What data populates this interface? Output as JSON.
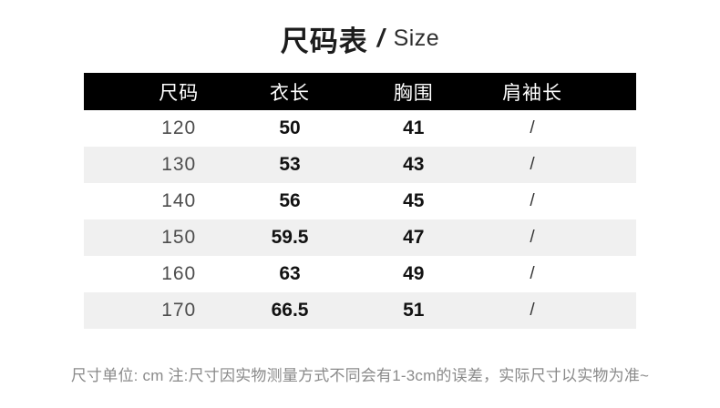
{
  "title": {
    "main": "尺码表",
    "separator": "/",
    "sub": "Size"
  },
  "table": {
    "columns": [
      "尺码",
      "衣长",
      "胸围",
      "肩袖长"
    ],
    "rows": [
      [
        "120",
        "50",
        "41",
        "/"
      ],
      [
        "130",
        "53",
        "43",
        "/"
      ],
      [
        "140",
        "56",
        "45",
        "/"
      ],
      [
        "150",
        "59.5",
        "47",
        "/"
      ],
      [
        "160",
        "63",
        "49",
        "/"
      ],
      [
        "170",
        "66.5",
        "51",
        "/"
      ]
    ]
  },
  "footer": {
    "note": "尺寸单位: cm 注:尺寸因实物测量方式不同会有1-3cm的误差，实际尺寸以实物为准~"
  },
  "colors": {
    "header_bg": "#000000",
    "header_text": "#ffffff",
    "row_alt_bg": "#f0f0f0",
    "note_text": "#8a8a8a"
  }
}
